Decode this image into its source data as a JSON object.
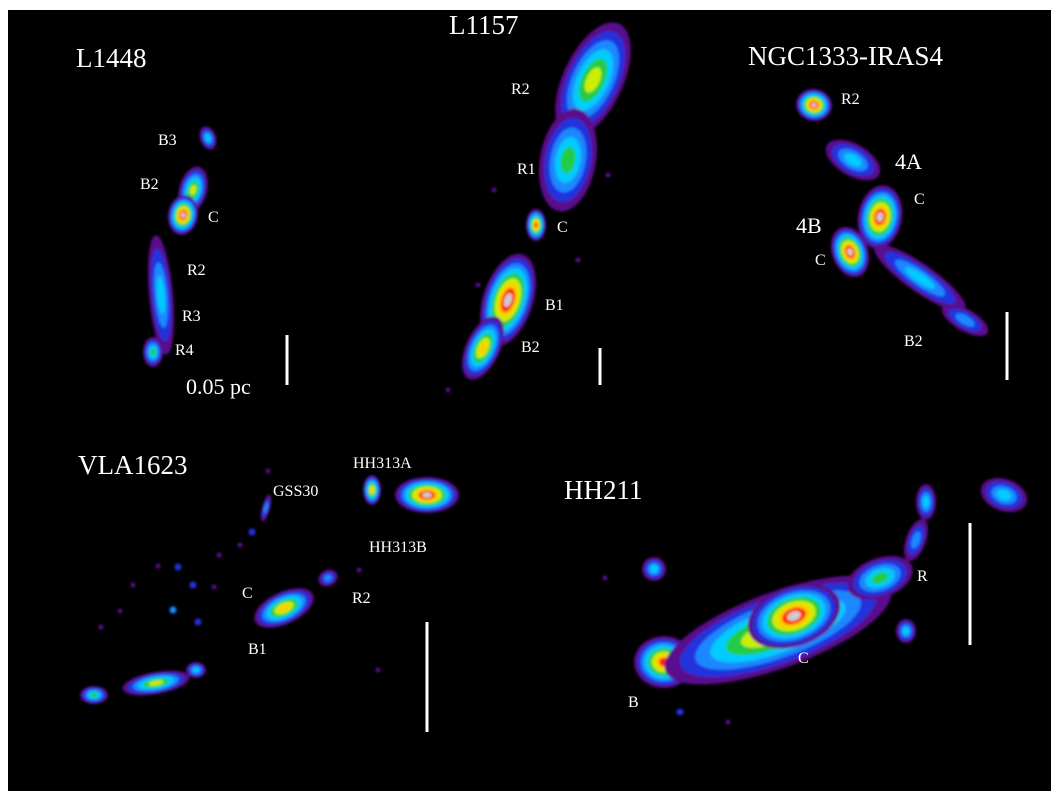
{
  "panels": {
    "l1448": {
      "name": "L1448",
      "knots": {
        "b3": "B3",
        "b2": "B2",
        "c": "C",
        "r2": "R2",
        "r3": "R3",
        "r4": "R4"
      },
      "scale_label": "0.05 pc"
    },
    "l1157": {
      "name": "L1157",
      "knots": {
        "r2": "R2",
        "r1": "R1",
        "c": "C",
        "b1": "B1",
        "b2": "B2"
      }
    },
    "iras4": {
      "name": "NGC1333-IRAS4",
      "knots": {
        "r2": "R2",
        "src_4a": "4A",
        "c_4a": "C",
        "src_4b": "4B",
        "c_4b": "C",
        "b2": "B2"
      }
    },
    "vla1623": {
      "name": "VLA1623",
      "knots": {
        "gss30": "GSS30",
        "hh313a": "HH313A",
        "hh313b": "HH313B",
        "c": "C",
        "r2": "R2",
        "b1": "B1"
      }
    },
    "hh211": {
      "name": "HH211",
      "knots": {
        "r": "R",
        "c": "C",
        "b": "B"
      }
    }
  },
  "colors": {
    "background": "#000000",
    "contour_levels": [
      "#5a0f8c",
      "#2233dd",
      "#1e88ff",
      "#00ccff",
      "#22cc44",
      "#ccee00",
      "#ffcc00",
      "#ff2200",
      "#cccccc"
    ],
    "text": "#ffffff"
  }
}
